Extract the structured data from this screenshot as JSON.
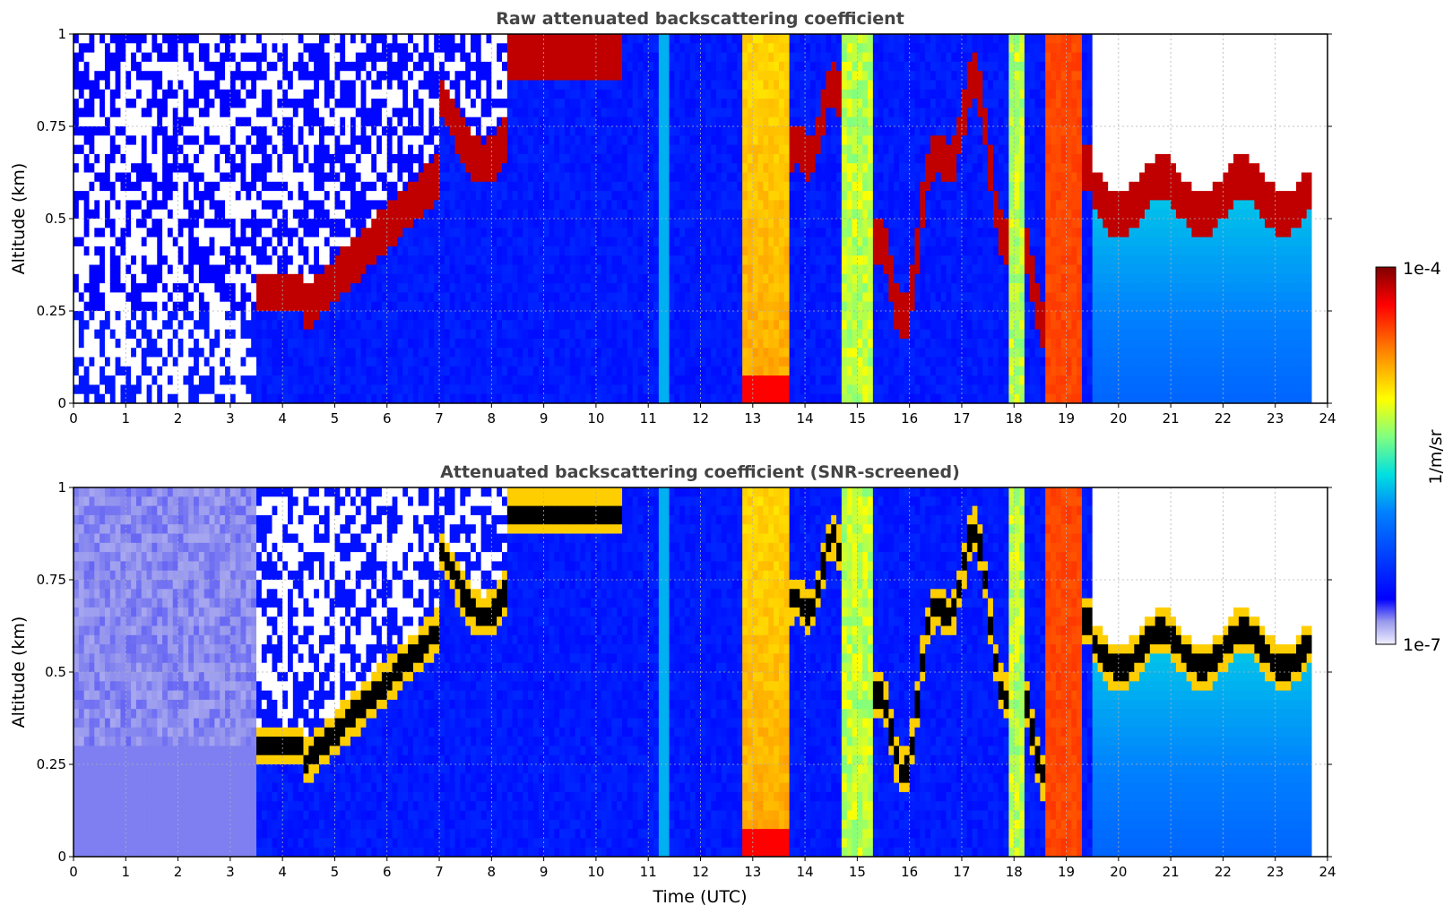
{
  "chart_data": [
    {
      "type": "heatmap",
      "title": "Raw attenuated backscattering coefficient",
      "xlabel": "",
      "ylabel": "Altitude (km)",
      "xlim": [
        0,
        24
      ],
      "ylim": [
        0,
        1
      ],
      "x_ticks": [
        "0",
        "1",
        "2",
        "3",
        "4",
        "5",
        "6",
        "7",
        "8",
        "9",
        "10",
        "11",
        "12",
        "13",
        "14",
        "15",
        "16",
        "17",
        "18",
        "19",
        "20",
        "21",
        "22",
        "23",
        "24"
      ],
      "y_ticks": [
        "0",
        "0.25",
        "0.5",
        "0.75",
        "1"
      ],
      "grid": true,
      "screened": false
    },
    {
      "type": "heatmap",
      "title": "Attenuated backscattering coefficient (SNR-screened)",
      "xlabel": "Time (UTC)",
      "ylabel": "Altitude (km)",
      "xlim": [
        0,
        24
      ],
      "ylim": [
        0,
        1
      ],
      "x_ticks": [
        "0",
        "1",
        "2",
        "3",
        "4",
        "5",
        "6",
        "7",
        "8",
        "9",
        "10",
        "11",
        "12",
        "13",
        "14",
        "15",
        "16",
        "17",
        "18",
        "19",
        "20",
        "21",
        "22",
        "23",
        "24"
      ],
      "y_ticks": [
        "0",
        "0.25",
        "0.5",
        "0.75",
        "1"
      ],
      "grid": true,
      "screened": true
    }
  ],
  "colorbar": {
    "label": "1/m/sr",
    "max_label": "1e-4",
    "min_label": "1e-7",
    "scale": "log",
    "range": [
      1e-07,
      0.0001
    ],
    "colormap": "jet"
  }
}
